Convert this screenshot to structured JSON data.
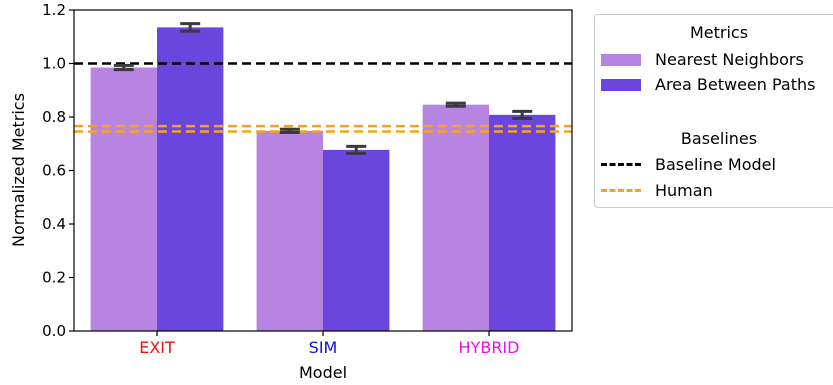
{
  "chart_data": {
    "type": "bar",
    "categories": [
      "EXIT",
      "SIM",
      "HYBRID"
    ],
    "category_colors": [
      "#ee1111",
      "#1111dd",
      "#ee11ee"
    ],
    "xlabel": "Model",
    "ylabel": "Normalized Metrics",
    "ylim": [
      0,
      1.2
    ],
    "yticks": [
      "0.0",
      "0.2",
      "0.4",
      "0.6",
      "0.8",
      "1.0",
      "1.2"
    ],
    "series": [
      {
        "name": "Nearest Neighbors",
        "color": "#b784e2",
        "values": [
          0.985,
          0.748,
          0.846
        ],
        "errors": [
          0.008,
          0.006,
          0.006
        ]
      },
      {
        "name": "Area Between Paths",
        "color": "#6a45de",
        "values": [
          1.135,
          0.677,
          0.808
        ],
        "errors": [
          0.014,
          0.013,
          0.013
        ]
      }
    ],
    "baselines": [
      {
        "name": "Baseline Model",
        "value": 1.0,
        "color": "#000000"
      },
      {
        "name": "Human",
        "value": 0.756,
        "band": 0.01,
        "color": "#f5a31a"
      }
    ],
    "legend": {
      "metrics_title": "Metrics",
      "baselines_title": "Baselines",
      "placement": "outside-right"
    }
  }
}
